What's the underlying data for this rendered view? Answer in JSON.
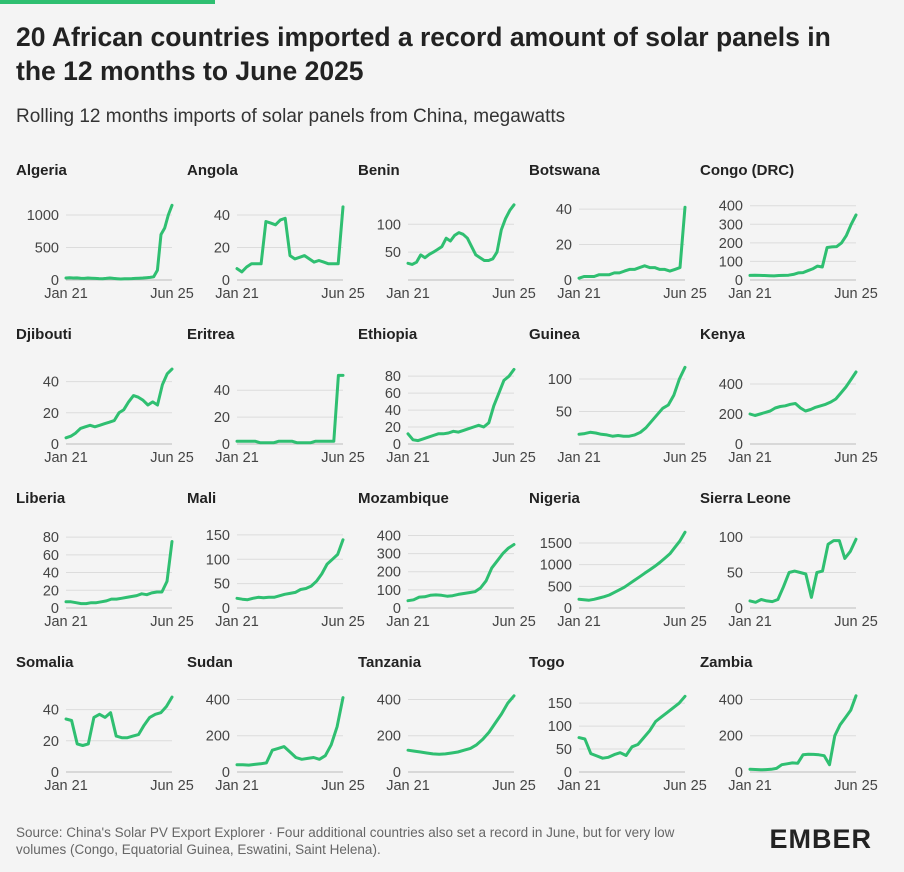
{
  "title": "20 African countries imported a record amount of solar panels in the 12 months to June 2025",
  "subtitle": "Rolling 12 months imports of solar panels from China, megawatts",
  "source": "Source: China's Solar PV Export Explorer · Four additional countries also set a record in June, but for very low volumes (Congo, Equatorial Guinea, Eswatini, Saint Helena).",
  "brand": "EMBER",
  "colors": {
    "line": "#2fbf71",
    "grid": "#dcdcdc",
    "axis": "#bdbdbd",
    "text": "#444"
  },
  "chart_data": {
    "type": "line",
    "x_start_label": "Jan 21",
    "x_end_label": "Jun 25",
    "panels": [
      {
        "country": "Algeria",
        "yticks": [
          0,
          500,
          1000
        ],
        "ylim": [
          0,
          1200
        ],
        "values": [
          30,
          35,
          30,
          32,
          28,
          25,
          30,
          28,
          25,
          22,
          20,
          25,
          30,
          25,
          20,
          15,
          18,
          20,
          22,
          25,
          28,
          30,
          35,
          40,
          50,
          150,
          700,
          800,
          1000,
          1150
        ]
      },
      {
        "country": "Angola",
        "yticks": [
          0,
          20,
          40
        ],
        "ylim": [
          0,
          48
        ],
        "values": [
          7,
          5,
          8,
          10,
          10,
          10,
          36,
          35,
          34,
          37,
          38,
          15,
          13,
          14,
          15,
          13,
          11,
          12,
          11,
          10,
          10,
          10,
          45
        ]
      },
      {
        "country": "Benin",
        "yticks": [
          50,
          100
        ],
        "ylim": [
          0,
          140
        ],
        "values": [
          30,
          28,
          32,
          45,
          40,
          46,
          50,
          55,
          60,
          75,
          70,
          80,
          85,
          82,
          75,
          60,
          45,
          40,
          35,
          35,
          38,
          50,
          90,
          110,
          125,
          135
        ]
      },
      {
        "country": "Botswana",
        "yticks": [
          0,
          20,
          40
        ],
        "ylim": [
          0,
          44
        ],
        "values": [
          1,
          2,
          2,
          2,
          3,
          3,
          3,
          4,
          4,
          5,
          6,
          6,
          7,
          8,
          7,
          7,
          6,
          6,
          5,
          6,
          7,
          41
        ]
      },
      {
        "country": "Congo (DRC)",
        "yticks": [
          0,
          100,
          200,
          300,
          400
        ],
        "ylim": [
          0,
          420
        ],
        "values": [
          25,
          26,
          25,
          24,
          23,
          22,
          24,
          25,
          26,
          30,
          38,
          40,
          50,
          60,
          75,
          70,
          175,
          178,
          180,
          200,
          240,
          300,
          350
        ]
      },
      {
        "country": "Djibouti",
        "yticks": [
          0,
          20,
          40
        ],
        "ylim": [
          0,
          50
        ],
        "values": [
          4,
          5,
          7,
          10,
          11,
          12,
          11,
          12,
          13,
          14,
          15,
          20,
          22,
          27,
          31,
          30,
          28,
          25,
          27,
          25,
          38,
          45,
          48
        ]
      },
      {
        "country": "Eritrea",
        "yticks": [
          0,
          20,
          40
        ],
        "ylim": [
          0,
          58
        ],
        "values": [
          2,
          2,
          2,
          2,
          2,
          1,
          1,
          1,
          1,
          2,
          2,
          2,
          2,
          1,
          1,
          1,
          1,
          2,
          2,
          2,
          2,
          2,
          51,
          51
        ]
      },
      {
        "country": "Ethiopia",
        "yticks": [
          0,
          20,
          40,
          60,
          80
        ],
        "ylim": [
          0,
          92
        ],
        "values": [
          12,
          5,
          4,
          6,
          8,
          10,
          12,
          12,
          13,
          15,
          14,
          16,
          18,
          20,
          22,
          20,
          25,
          45,
          60,
          75,
          80,
          88
        ]
      },
      {
        "country": "Guinea",
        "yticks": [
          50,
          100
        ],
        "ylim": [
          0,
          120
        ],
        "values": [
          15,
          16,
          18,
          17,
          15,
          14,
          12,
          13,
          12,
          12,
          14,
          18,
          25,
          35,
          45,
          55,
          60,
          75,
          100,
          118
        ]
      },
      {
        "country": "Kenya",
        "yticks": [
          0,
          200,
          400
        ],
        "ylim": [
          0,
          520
        ],
        "values": [
          200,
          190,
          200,
          210,
          220,
          240,
          250,
          255,
          265,
          270,
          240,
          220,
          230,
          245,
          255,
          265,
          280,
          300,
          340,
          380,
          430,
          480
        ]
      },
      {
        "country": "Liberia",
        "yticks": [
          0,
          20,
          40,
          60,
          80
        ],
        "ylim": [
          0,
          88
        ],
        "values": [
          7,
          7,
          6,
          5,
          5,
          6,
          6,
          7,
          8,
          10,
          10,
          11,
          12,
          13,
          14,
          16,
          15,
          17,
          18,
          18,
          30,
          75
        ]
      },
      {
        "country": "Mali",
        "yticks": [
          0,
          50,
          100,
          150
        ],
        "ylim": [
          0,
          160
        ],
        "values": [
          20,
          18,
          17,
          20,
          22,
          21,
          22,
          22,
          25,
          28,
          30,
          32,
          38,
          40,
          45,
          55,
          70,
          90,
          100,
          110,
          140
        ]
      },
      {
        "country": "Mozambique",
        "yticks": [
          0,
          100,
          200,
          300,
          400
        ],
        "ylim": [
          0,
          430
        ],
        "values": [
          40,
          45,
          60,
          62,
          70,
          72,
          70,
          65,
          68,
          75,
          80,
          85,
          90,
          110,
          150,
          220,
          260,
          300,
          330,
          350
        ]
      },
      {
        "country": "Nigeria",
        "yticks": [
          0,
          500,
          1000,
          1500
        ],
        "ylim": [
          0,
          1800
        ],
        "values": [
          200,
          190,
          180,
          200,
          230,
          260,
          300,
          360,
          420,
          480,
          560,
          640,
          720,
          800,
          880,
          960,
          1050,
          1150,
          1250,
          1400,
          1550,
          1750
        ]
      },
      {
        "country": "Sierra Leone",
        "yticks": [
          0,
          50,
          100
        ],
        "ylim": [
          0,
          110
        ],
        "values": [
          10,
          8,
          12,
          10,
          9,
          12,
          30,
          50,
          52,
          50,
          48,
          15,
          50,
          52,
          90,
          95,
          95,
          70,
          80,
          97
        ]
      },
      {
        "country": "Somalia",
        "yticks": [
          0,
          20,
          40
        ],
        "ylim": [
          0,
          50
        ],
        "values": [
          34,
          33,
          18,
          17,
          18,
          35,
          37,
          35,
          38,
          23,
          22,
          22,
          23,
          24,
          30,
          35,
          37,
          38,
          42,
          48
        ]
      },
      {
        "country": "Sudan",
        "yticks": [
          0,
          200,
          400
        ],
        "ylim": [
          0,
          430
        ],
        "values": [
          40,
          40,
          38,
          42,
          45,
          50,
          120,
          130,
          140,
          110,
          80,
          70,
          75,
          80,
          70,
          90,
          150,
          250,
          410
        ]
      },
      {
        "country": "Tanzania",
        "yticks": [
          0,
          200,
          400
        ],
        "ylim": [
          0,
          430
        ],
        "values": [
          120,
          115,
          110,
          105,
          100,
          98,
          100,
          105,
          110,
          120,
          130,
          150,
          180,
          220,
          270,
          320,
          380,
          420
        ]
      },
      {
        "country": "Togo",
        "yticks": [
          0,
          50,
          100,
          150
        ],
        "ylim": [
          0,
          170
        ],
        "values": [
          75,
          72,
          40,
          35,
          30,
          32,
          38,
          42,
          36,
          55,
          60,
          75,
          90,
          110,
          120,
          130,
          140,
          150,
          165
        ]
      },
      {
        "country": "Zambia",
        "yticks": [
          0,
          200,
          400
        ],
        "ylim": [
          0,
          430
        ],
        "values": [
          15,
          14,
          12,
          13,
          15,
          20,
          40,
          45,
          50,
          48,
          95,
          98,
          97,
          95,
          90,
          40,
          200,
          260,
          300,
          340,
          420
        ]
      }
    ]
  }
}
